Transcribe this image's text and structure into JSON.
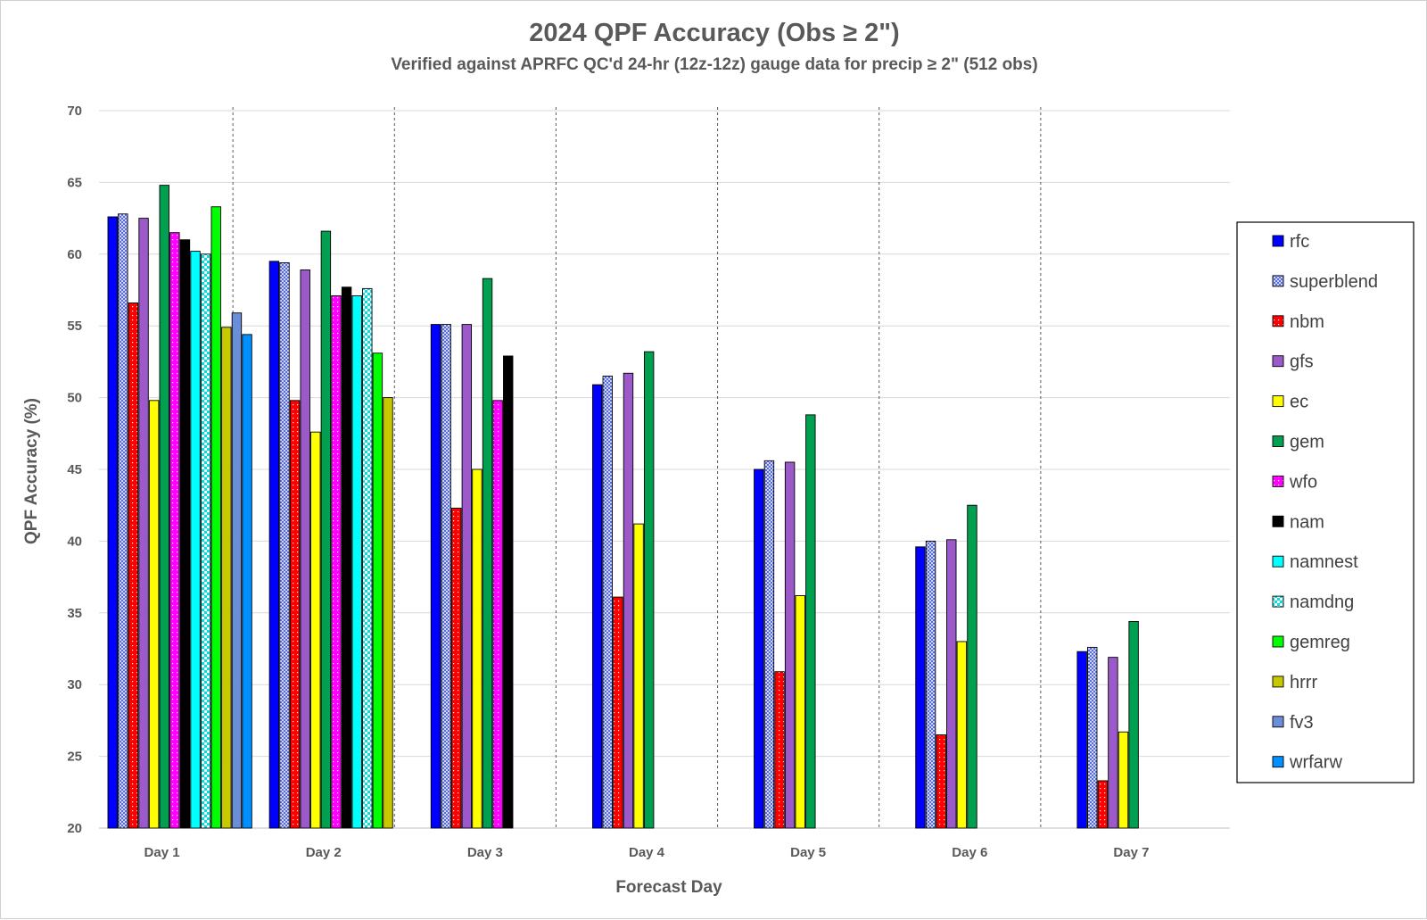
{
  "chart_data": {
    "type": "bar",
    "title": "2024 QPF Accuracy (Obs ≥ 2\")",
    "subtitle": "Verified against APRFC QC'd 24-hr (12z-12z) gauge data for precip ≥ 2\" (512 obs)",
    "xlabel": "Forecast Day",
    "ylabel": "QPF Accuracy (%)",
    "ylim": [
      20,
      70
    ],
    "yticks": [
      "20",
      "25",
      "30",
      "35",
      "40",
      "45",
      "50",
      "55",
      "60",
      "65",
      "70"
    ],
    "grid": true,
    "legend_position": "right",
    "categories": [
      "Day 1",
      "Day 2",
      "Day 3",
      "Day 4",
      "Day 5",
      "Day 6",
      "Day 7"
    ],
    "series": [
      {
        "name": "rfc",
        "color": "#0000ff",
        "pattern": "solid",
        "values": [
          62.6,
          59.5,
          55.1,
          50.9,
          45.0,
          39.6,
          32.3
        ]
      },
      {
        "name": "superblend",
        "color": "#6f7fe8",
        "pattern": "crosshatch",
        "values": [
          62.8,
          59.4,
          55.1,
          51.5,
          45.6,
          40.0,
          32.6
        ]
      },
      {
        "name": "nbm",
        "color": "#ff0000",
        "pattern": "dots",
        "values": [
          56.6,
          49.8,
          42.3,
          36.1,
          30.9,
          26.5,
          23.3
        ]
      },
      {
        "name": "gfs",
        "color": "#9b59c9",
        "pattern": "solid",
        "values": [
          62.5,
          58.9,
          55.1,
          51.7,
          45.5,
          40.1,
          31.9
        ]
      },
      {
        "name": "ec",
        "color": "#ffff00",
        "pattern": "solid",
        "values": [
          49.8,
          47.6,
          45.0,
          41.2,
          36.2,
          33.0,
          26.7
        ]
      },
      {
        "name": "gem",
        "color": "#00a050",
        "pattern": "solid",
        "values": [
          64.8,
          61.6,
          58.3,
          53.2,
          48.8,
          42.5,
          34.4
        ]
      },
      {
        "name": "wfo",
        "color": "#ff00ff",
        "pattern": "dots",
        "values": [
          61.5,
          57.1,
          49.8,
          null,
          null,
          null,
          null
        ]
      },
      {
        "name": "nam",
        "color": "#000000",
        "pattern": "solid",
        "values": [
          61.0,
          57.7,
          52.9,
          null,
          null,
          null,
          null
        ]
      },
      {
        "name": "namnest",
        "color": "#00ffff",
        "pattern": "solid",
        "values": [
          60.2,
          57.1,
          null,
          null,
          null,
          null,
          null
        ]
      },
      {
        "name": "namdng",
        "color": "#00ffff",
        "pattern": "checker",
        "values": [
          60.0,
          57.6,
          null,
          null,
          null,
          null,
          null
        ]
      },
      {
        "name": "gemreg",
        "color": "#00ff00",
        "pattern": "solid",
        "values": [
          63.3,
          53.1,
          null,
          null,
          null,
          null,
          null
        ]
      },
      {
        "name": "hrrr",
        "color": "#c8c800",
        "pattern": "solid",
        "values": [
          54.9,
          50.0,
          null,
          null,
          null,
          null,
          null
        ]
      },
      {
        "name": "fv3",
        "color": "#6a8fd8",
        "pattern": "solid",
        "values": [
          55.9,
          null,
          null,
          null,
          null,
          null,
          null
        ]
      },
      {
        "name": "wrfarw",
        "color": "#0090ff",
        "pattern": "solid",
        "values": [
          54.4,
          null,
          null,
          null,
          null,
          null,
          null
        ]
      }
    ]
  }
}
